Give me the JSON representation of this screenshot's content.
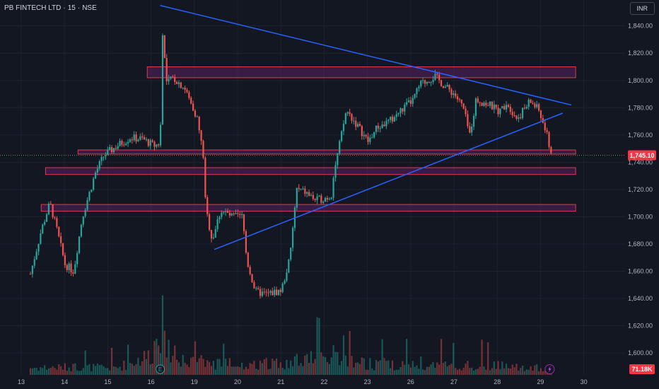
{
  "header": {
    "symbol": "PB FINTECH LTD",
    "interval": "15",
    "exchange": "NSE",
    "currency_button": "INR"
  },
  "colors": {
    "background": "#131722",
    "up": "#26a69a",
    "down": "#ef5350",
    "trendline": "#2962ff",
    "zone_fill": "#5b1f5e",
    "zone_stroke": "#e53950",
    "badge": "#f23645"
  },
  "markers": {
    "earnings_icon": "E",
    "flash_icon": "lightning-icon"
  },
  "chart_data": {
    "type": "candlestick",
    "title": "",
    "price_axis": {
      "ticks": [
        "1,600.00",
        "1,620.00",
        "1,640.00",
        "1,660.00",
        "1,680.00",
        "1,700.00",
        "1,720.00",
        "1,740.00",
        "1,760.00",
        "1,780.00",
        "1,800.00",
        "1,820.00",
        "1,840.00"
      ],
      "range": [
        1585,
        1858
      ]
    },
    "date_axis": {
      "labels": [
        "13",
        "14",
        "15",
        "16",
        "19",
        "20",
        "21",
        "22",
        "23",
        "26",
        "27",
        "28",
        "29",
        "30"
      ],
      "label_session_index": [
        0,
        1,
        2,
        3,
        4,
        5,
        6,
        7,
        8,
        9,
        10,
        11,
        12,
        13
      ]
    },
    "last_price": "1,745.10",
    "last_volume": "71.18K",
    "close_path": [
      [
        0.0,
        1658
      ],
      [
        0.25,
        1690
      ],
      [
        0.45,
        1710
      ],
      [
        0.6,
        1692
      ],
      [
        0.8,
        1665
      ],
      [
        1.0,
        1660
      ],
      [
        1.2,
        1700
      ],
      [
        1.5,
        1732
      ],
      [
        1.7,
        1745
      ],
      [
        2.0,
        1752
      ],
      [
        2.3,
        1758
      ],
      [
        2.6,
        1757
      ],
      [
        2.85,
        1752
      ],
      [
        3.0,
        1754
      ],
      [
        3.05,
        1835
      ],
      [
        3.15,
        1798
      ],
      [
        3.3,
        1802
      ],
      [
        3.55,
        1795
      ],
      [
        3.85,
        1773
      ],
      [
        4.0,
        1744
      ],
      [
        4.05,
        1706
      ],
      [
        4.2,
        1683
      ],
      [
        4.4,
        1705
      ],
      [
        4.65,
        1700
      ],
      [
        4.9,
        1700
      ],
      [
        5.0,
        1668
      ],
      [
        5.2,
        1645
      ],
      [
        5.45,
        1643
      ],
      [
        5.8,
        1646
      ],
      [
        6.0,
        1670
      ],
      [
        6.15,
        1720
      ],
      [
        6.35,
        1718
      ],
      [
        6.6,
        1712
      ],
      [
        6.95,
        1715
      ],
      [
        7.0,
        1730
      ],
      [
        7.3,
        1778
      ],
      [
        7.6,
        1765
      ],
      [
        7.8,
        1755
      ],
      [
        8.0,
        1765
      ],
      [
        8.3,
        1770
      ],
      [
        8.6,
        1779
      ],
      [
        8.85,
        1786
      ],
      [
        9.0,
        1797
      ],
      [
        9.35,
        1803
      ],
      [
        9.6,
        1795
      ],
      [
        9.8,
        1790
      ],
      [
        10.0,
        1780
      ],
      [
        10.15,
        1760
      ],
      [
        10.3,
        1786
      ],
      [
        10.6,
        1782
      ],
      [
        10.85,
        1777
      ],
      [
        11.0,
        1784
      ],
      [
        11.25,
        1772
      ],
      [
        11.55,
        1785
      ],
      [
        11.75,
        1778
      ],
      [
        11.95,
        1758
      ],
      [
        12.05,
        1745.1
      ]
    ],
    "volume_profile": [
      [
        0,
        0.12
      ],
      [
        1,
        0.13
      ],
      [
        2,
        0.12
      ],
      [
        2.8,
        0.34
      ],
      [
        3.05,
        0.95
      ],
      [
        3.3,
        0.26
      ],
      [
        4,
        0.22
      ],
      [
        5,
        0.16
      ],
      [
        6,
        0.22
      ],
      [
        7,
        0.32
      ],
      [
        8,
        0.16
      ],
      [
        9,
        0.18
      ],
      [
        10,
        0.16
      ],
      [
        11,
        0.15
      ],
      [
        12,
        0.1
      ]
    ],
    "zones": [
      {
        "low": 1802,
        "high": 1810,
        "from_session": 2.7,
        "to_session": 12.6
      },
      {
        "low": 1746,
        "high": 1749,
        "from_session": 1.1,
        "to_session": 12.6
      },
      {
        "low": 1731,
        "high": 1736,
        "from_session": 0.35,
        "to_session": 12.6
      },
      {
        "low": 1704,
        "high": 1709,
        "from_session": 0.25,
        "to_session": 12.6
      }
    ],
    "trendlines": [
      {
        "from": [
          3.0,
          1855
        ],
        "to": [
          12.5,
          1782
        ]
      },
      {
        "from": [
          4.25,
          1676
        ],
        "to": [
          12.3,
          1776
        ]
      }
    ],
    "grid": true,
    "legend": "none"
  }
}
